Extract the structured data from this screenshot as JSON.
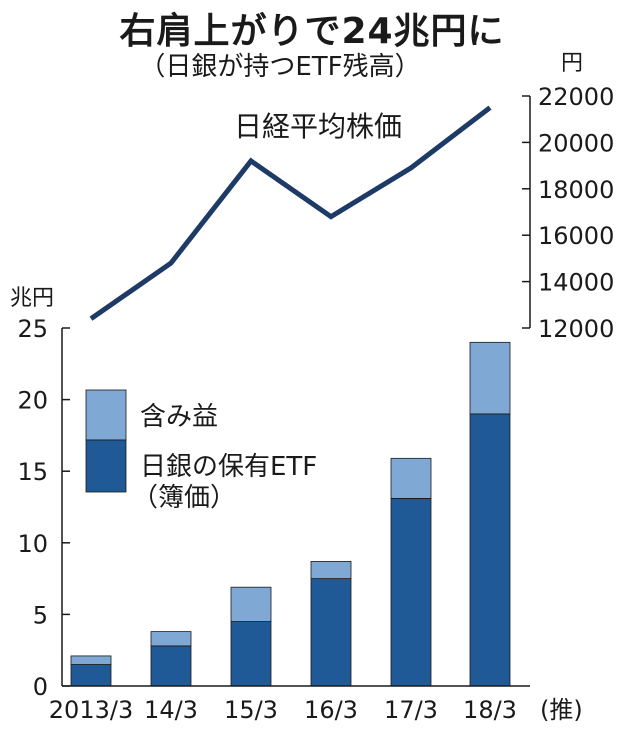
{
  "title": "右肩上がりで24兆円に",
  "subtitle": "（日銀が持つETF残高）",
  "chart_data": {
    "type": "bar",
    "categories": [
      "2013/3",
      "14/3",
      "15/3",
      "16/3",
      "17/3",
      "18/3"
    ],
    "category_note": "(推)",
    "left_axis": {
      "unit": "兆円",
      "ylim": [
        0,
        25
      ],
      "ticks": [
        0,
        5,
        10,
        15,
        20,
        25
      ]
    },
    "right_axis": {
      "unit": "円",
      "ylim": [
        12000,
        22000
      ],
      "ticks": [
        12000,
        14000,
        16000,
        18000,
        20000,
        22000
      ]
    },
    "series": [
      {
        "name": "日銀の保有ETF",
        "name_note": "（簿価）",
        "color": "#1f5a96",
        "stack": true,
        "values": [
          1.5,
          2.8,
          4.5,
          7.5,
          13.1,
          19.0
        ]
      },
      {
        "name": "含み益",
        "color": "#7fa9d4",
        "stack": true,
        "values": [
          0.6,
          1.0,
          2.4,
          1.2,
          2.8,
          5.0
        ]
      },
      {
        "name": "日経平均株価",
        "type": "line",
        "axis": "right",
        "color": "#1e3a66",
        "values": [
          12400,
          14800,
          19200,
          16800,
          18900,
          21500
        ]
      }
    ],
    "grid": false,
    "legend_position": "upper-left"
  }
}
